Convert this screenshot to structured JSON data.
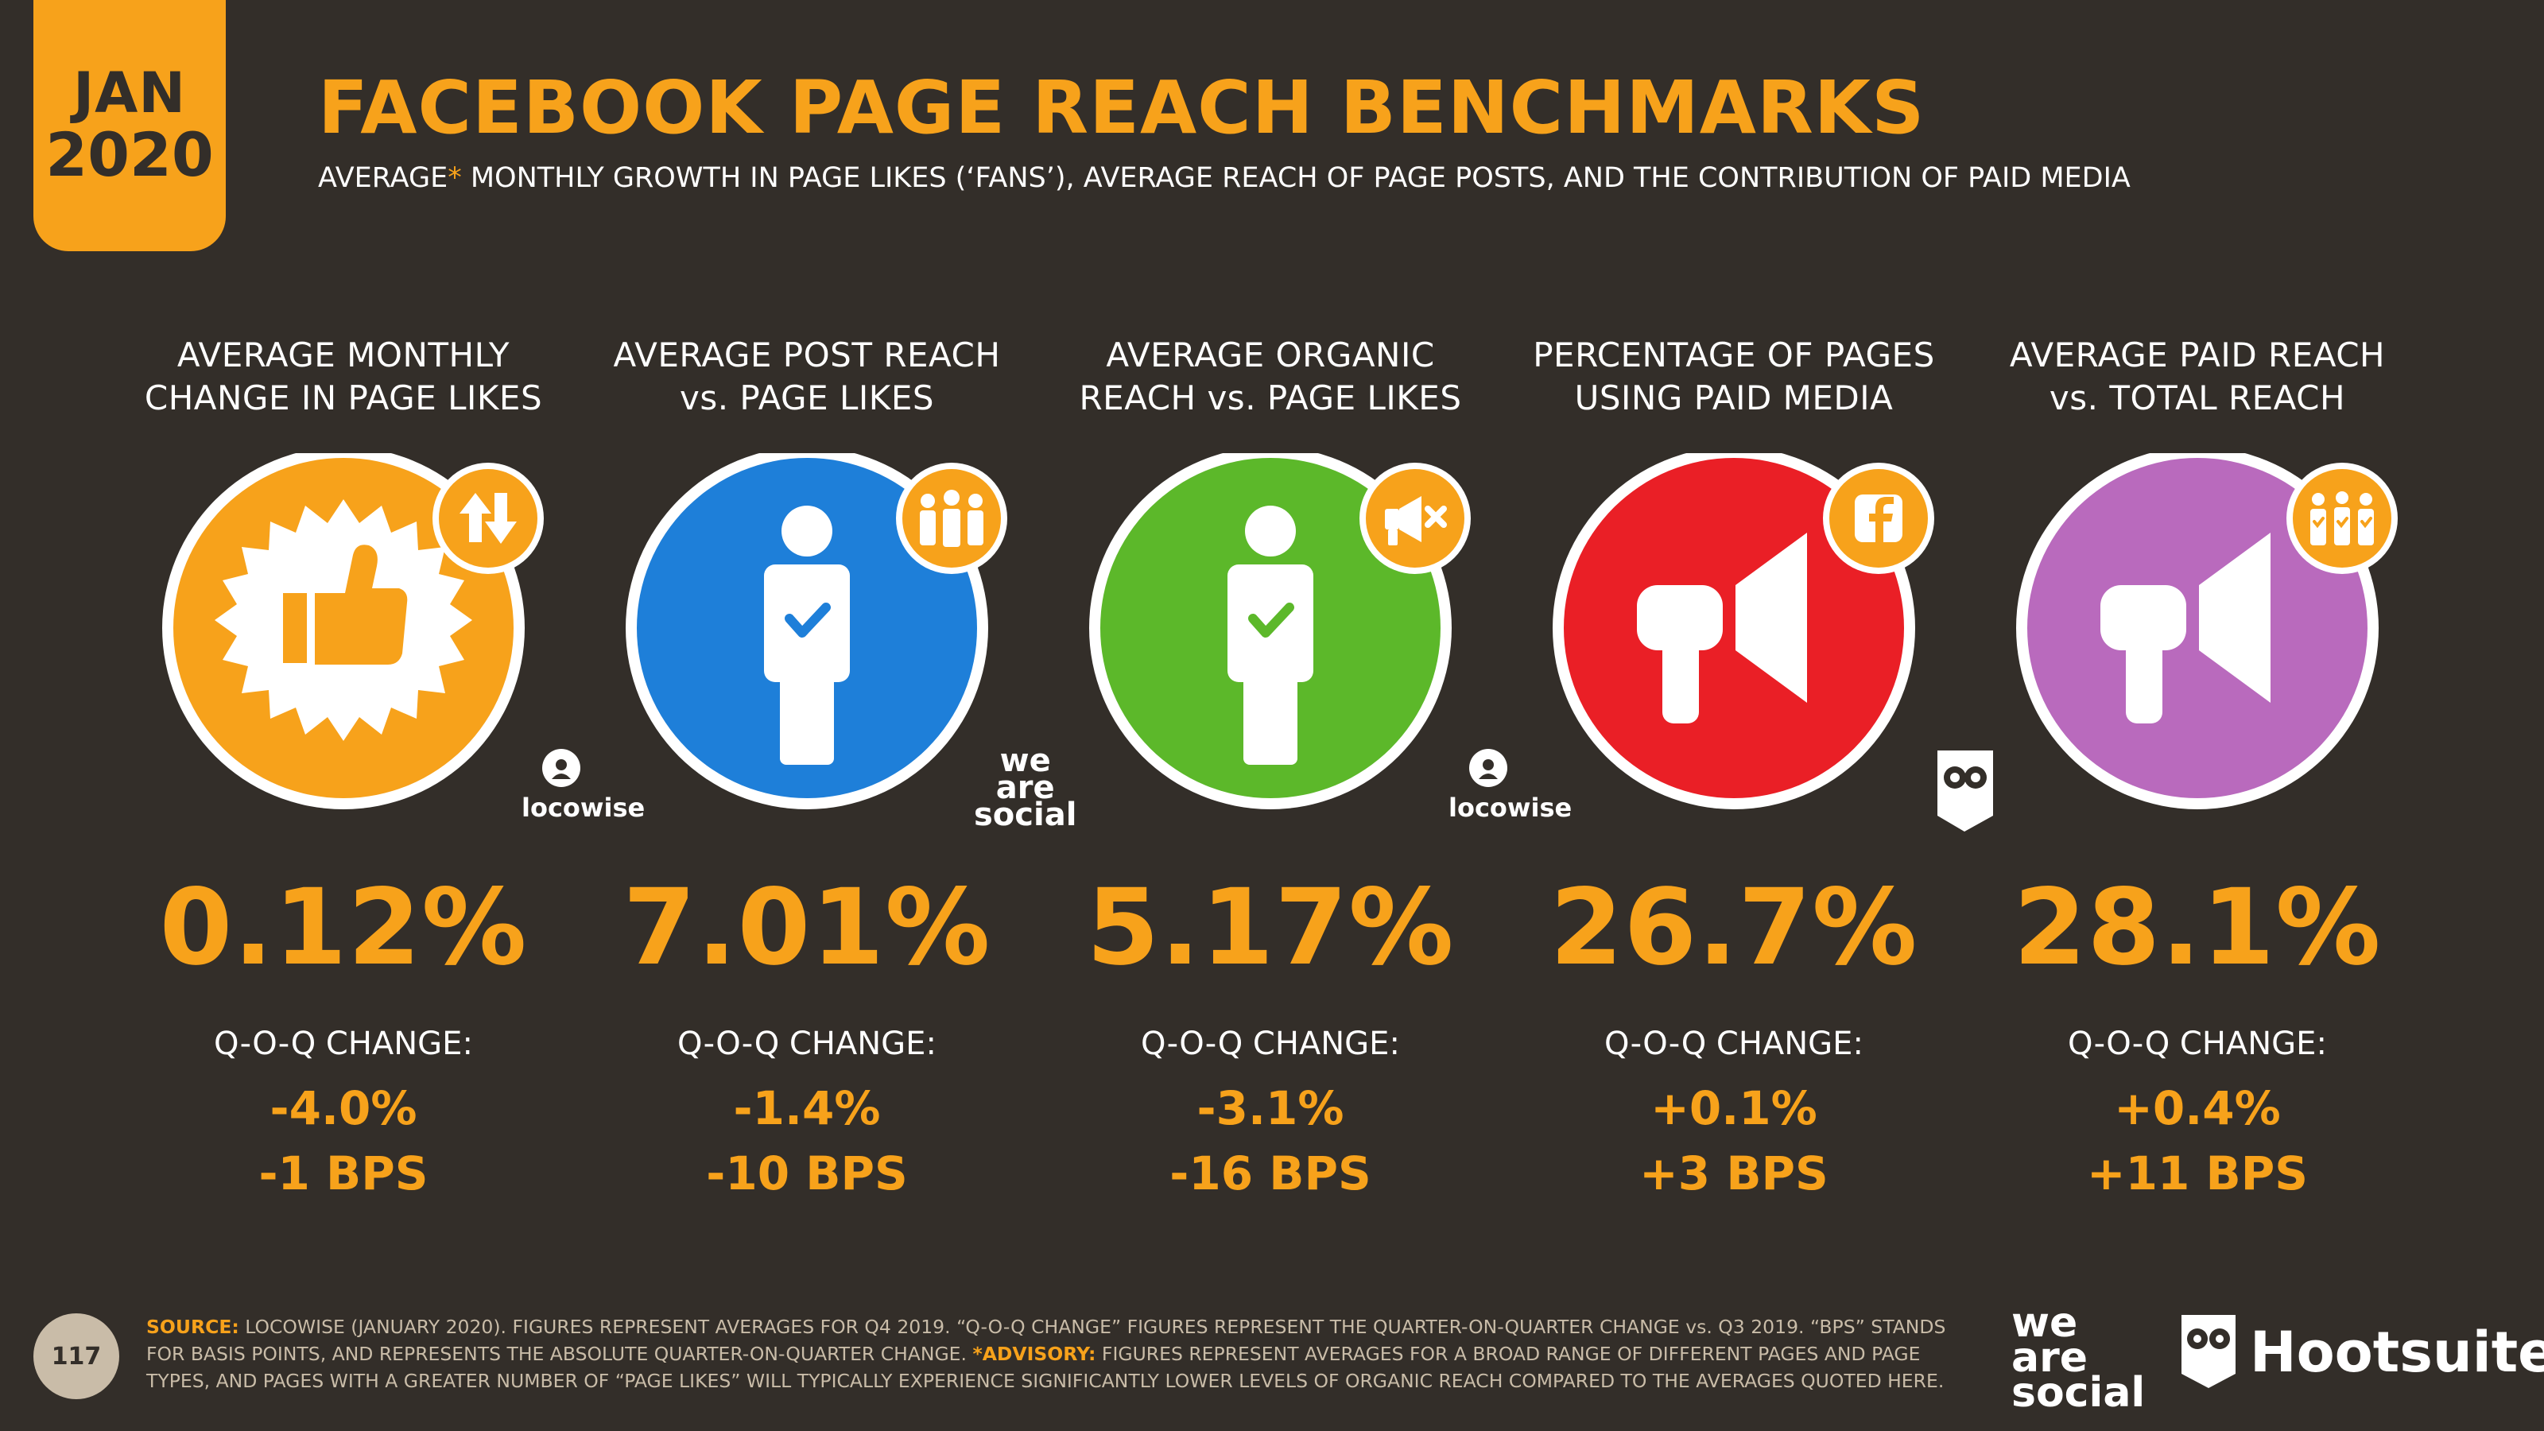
{
  "header": {
    "month": "JAN",
    "year": "2020",
    "title": "FACEBOOK PAGE REACH BENCHMARKS",
    "subtitle_prefix": "AVERAGE",
    "subtitle_asterisk": "*",
    "subtitle_rest": " MONTHLY GROWTH IN PAGE LIKES (‘FANS’), AVERAGE REACH OF PAGE POSTS, AND THE CONTRIBUTION OF PAID MEDIA"
  },
  "colors": {
    "background": "#332e29",
    "accent_orange": "#f7a21b",
    "blue": "#1e7fd9",
    "green": "#5cb82a",
    "red": "#ea1f26",
    "purple": "#b96abd"
  },
  "metrics": [
    {
      "label_line1": "AVERAGE MONTHLY",
      "label_line2": "CHANGE IN PAGE LIKES",
      "value": "0.12%",
      "qoq_label": "Q-O-Q CHANGE:",
      "qoq_pct": "-4.0%",
      "qoq_bps": "-1 BPS",
      "icon": "thumbs-up-icon",
      "badge_icon": "up-down-arrows-icon",
      "source_logo": "locowise"
    },
    {
      "label_line1": "AVERAGE POST REACH",
      "label_line2": "vs. PAGE LIKES",
      "value": "7.01%",
      "qoq_label": "Q-O-Q CHANGE:",
      "qoq_pct": "-1.4%",
      "qoq_bps": "-10 BPS",
      "icon": "person-check-icon",
      "badge_icon": "people-group-icon",
      "source_logo_lines": [
        "we",
        "are",
        "social"
      ]
    },
    {
      "label_line1": "AVERAGE ORGANIC",
      "label_line2": "REACH vs. PAGE LIKES",
      "value": "5.17%",
      "qoq_label": "Q-O-Q CHANGE:",
      "qoq_pct": "-3.1%",
      "qoq_bps": "-16 BPS",
      "icon": "person-check-icon",
      "badge_icon": "megaphone-muted-icon",
      "source_logo": "locowise"
    },
    {
      "label_line1": "PERCENTAGE OF PAGES",
      "label_line2": "USING PAID MEDIA",
      "value": "26.7%",
      "qoq_label": "Q-O-Q CHANGE:",
      "qoq_pct": "+0.1%",
      "qoq_bps": "+3 BPS",
      "icon": "megaphone-icon",
      "badge_icon": "facebook-icon",
      "source_logo": "hootsuite-owl"
    },
    {
      "label_line1": "AVERAGE PAID REACH",
      "label_line2": "vs. TOTAL REACH",
      "value": "28.1%",
      "qoq_label": "Q-O-Q CHANGE:",
      "qoq_pct": "+0.4%",
      "qoq_bps": "+11 BPS",
      "icon": "megaphone-icon",
      "badge_icon": "people-check-icon"
    }
  ],
  "footer": {
    "page_number": "117",
    "source_label": "SOURCE:",
    "source_text": " LOCOWISE (JANUARY 2020). FIGURES REPRESENT AVERAGES FOR Q4 2019. “Q-O-Q CHANGE” FIGURES REPRESENT THE QUARTER-ON-QUARTER CHANGE vs. Q3 2019. “BPS” STANDS FOR BASIS POINTS, AND REPRESENTS THE ABSOLUTE QUARTER-ON-QUARTER CHANGE. ",
    "advisory_label": "*ADVISORY:",
    "advisory_text": " FIGURES REPRESENT AVERAGES FOR A BROAD RANGE OF DIFFERENT PAGES AND PAGE TYPES, AND PAGES WITH A GREATER NUMBER OF “PAGE LIKES” WILL TYPICALLY EXPERIENCE SIGNIFICANTLY LOWER LEVELS OF ORGANIC REACH COMPARED TO THE AVERAGES QUOTED HERE.",
    "was_line1": "we",
    "was_line2": "are",
    "was_line3": "social",
    "hootsuite": "Hootsuite",
    "hootsuite_mark": "®"
  }
}
